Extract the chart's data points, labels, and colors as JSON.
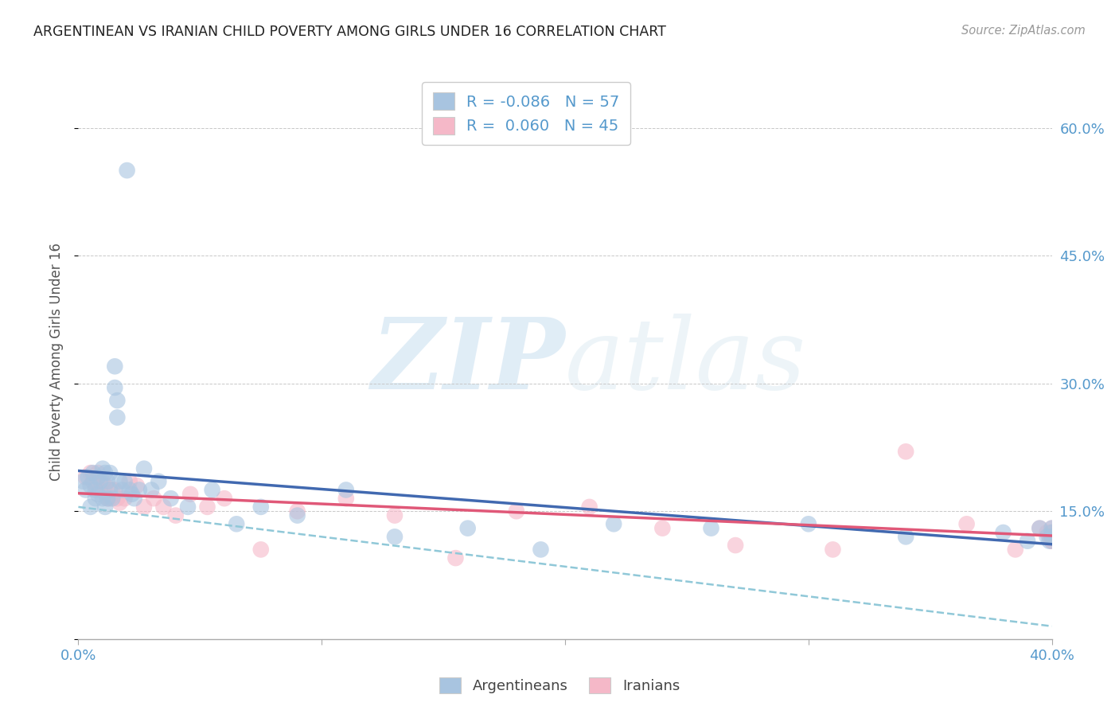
{
  "title": "ARGENTINEAN VS IRANIAN CHILD POVERTY AMONG GIRLS UNDER 16 CORRELATION CHART",
  "source": "Source: ZipAtlas.com",
  "ylabel": "Child Poverty Among Girls Under 16",
  "watermark_zip": "ZIP",
  "watermark_atlas": "atlas",
  "xlim": [
    0.0,
    0.4
  ],
  "ylim": [
    0.0,
    0.65
  ],
  "yticks": [
    0.0,
    0.15,
    0.3,
    0.45,
    0.6
  ],
  "ytick_labels": [
    "",
    "15.0%",
    "30.0%",
    "45.0%",
    "60.0%"
  ],
  "xtick_labels": [
    "0.0%",
    "",
    "",
    "",
    "40.0%"
  ],
  "legend_R1": "-0.086",
  "legend_N1": "57",
  "legend_R2": " 0.060",
  "legend_N2": "45",
  "blue_color": "#a8c4e0",
  "pink_color": "#f5b8c8",
  "blue_line_color": "#4169b0",
  "pink_line_color": "#e05878",
  "dashed_line_color": "#90c8d8",
  "tick_color": "#5599cc",
  "arg_x": [
    0.002,
    0.003,
    0.004,
    0.005,
    0.005,
    0.006,
    0.007,
    0.007,
    0.008,
    0.008,
    0.009,
    0.01,
    0.01,
    0.011,
    0.011,
    0.012,
    0.012,
    0.013,
    0.013,
    0.014,
    0.015,
    0.015,
    0.016,
    0.016,
    0.017,
    0.018,
    0.019,
    0.02,
    0.021,
    0.022,
    0.023,
    0.025,
    0.027,
    0.03,
    0.033,
    0.038,
    0.045,
    0.055,
    0.065,
    0.075,
    0.09,
    0.11,
    0.13,
    0.16,
    0.19,
    0.22,
    0.26,
    0.3,
    0.34,
    0.38,
    0.39,
    0.395,
    0.398,
    0.399,
    0.4,
    0.4,
    0.4
  ],
  "arg_y": [
    0.185,
    0.175,
    0.19,
    0.18,
    0.155,
    0.195,
    0.175,
    0.165,
    0.19,
    0.17,
    0.185,
    0.2,
    0.165,
    0.195,
    0.155,
    0.185,
    0.165,
    0.195,
    0.175,
    0.165,
    0.32,
    0.295,
    0.26,
    0.28,
    0.185,
    0.175,
    0.185,
    0.55,
    0.175,
    0.17,
    0.165,
    0.175,
    0.2,
    0.175,
    0.185,
    0.165,
    0.155,
    0.175,
    0.135,
    0.155,
    0.145,
    0.175,
    0.12,
    0.13,
    0.105,
    0.135,
    0.13,
    0.135,
    0.12,
    0.125,
    0.115,
    0.13,
    0.12,
    0.115,
    0.125,
    0.13,
    0.12
  ],
  "iran_x": [
    0.003,
    0.005,
    0.006,
    0.007,
    0.008,
    0.009,
    0.01,
    0.011,
    0.012,
    0.013,
    0.014,
    0.015,
    0.016,
    0.017,
    0.019,
    0.021,
    0.024,
    0.027,
    0.031,
    0.035,
    0.04,
    0.046,
    0.053,
    0.06,
    0.075,
    0.09,
    0.11,
    0.13,
    0.155,
    0.18,
    0.21,
    0.24,
    0.27,
    0.31,
    0.34,
    0.365,
    0.385,
    0.395,
    0.398,
    0.399,
    0.4,
    0.4,
    0.4,
    0.4,
    0.4
  ],
  "iran_y": [
    0.19,
    0.195,
    0.185,
    0.18,
    0.195,
    0.175,
    0.185,
    0.18,
    0.165,
    0.165,
    0.175,
    0.175,
    0.165,
    0.16,
    0.165,
    0.185,
    0.18,
    0.155,
    0.165,
    0.155,
    0.145,
    0.17,
    0.155,
    0.165,
    0.105,
    0.15,
    0.165,
    0.145,
    0.095,
    0.15,
    0.155,
    0.13,
    0.11,
    0.105,
    0.22,
    0.135,
    0.105,
    0.13,
    0.125,
    0.12,
    0.115,
    0.125,
    0.12,
    0.115,
    0.13
  ],
  "background_color": "#ffffff",
  "grid_color": "#c8c8c8"
}
